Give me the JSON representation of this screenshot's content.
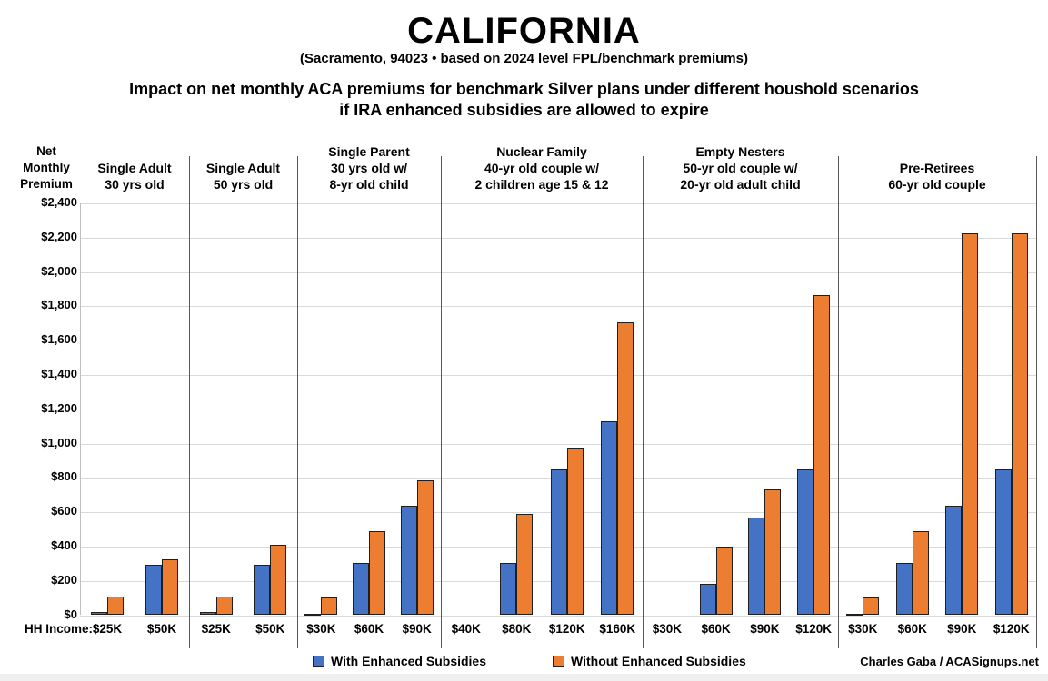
{
  "title": "CALIFORNIA",
  "subtitle": "(Sacramento, 94023 • based on 2024 level FPL/benchmark premiums)",
  "heading_line1": "Impact on net monthly ACA premiums for benchmark Silver plans under different houshold scenarios",
  "heading_line2": "if IRA enhanced subsidies are allowed to expire",
  "y_axis_title_lines": [
    "Net",
    "Monthly",
    "Premium"
  ],
  "hh_income_label": "HH Income:",
  "credit": "Charles Gaba / ACASignups.net",
  "colors": {
    "with_enhanced": "#4472C4",
    "without_enhanced": "#ED7D31",
    "bar_border": "#1f1f1f",
    "gridline": "#d9d9d9",
    "separator": "#595959"
  },
  "legend": [
    {
      "label": "With Enhanced Subsidies",
      "color": "#4472C4"
    },
    {
      "label": "Without Enhanced Subsidies",
      "color": "#ED7D31"
    }
  ],
  "chart_data": {
    "type": "bar",
    "title": "CALIFORNIA (Sacramento, 94023) — Impact on net monthly ACA premiums for benchmark Silver plans under different houshold scenarios if IRA enhanced subsidies are allowed to expire",
    "xlabel": "HH Income",
    "ylabel": "Net Monthly Premium",
    "ylim": [
      0,
      2400
    ],
    "ytick_step": 200,
    "y_ticks": [
      0,
      200,
      400,
      600,
      800,
      1000,
      1200,
      1400,
      1600,
      1800,
      2000,
      2200,
      2400
    ],
    "grid": true,
    "legend_position": "bottom",
    "series_names": [
      "With Enhanced Subsidies",
      "Without Enhanced Subsidies"
    ],
    "groups": [
      {
        "name": "Single Adult 30 yrs old",
        "header_lines": [
          "Single Adult",
          "30 yrs old"
        ],
        "categories": [
          "$25K",
          "$50K"
        ],
        "series": [
          {
            "name": "With Enhanced Subsidies",
            "values": [
              20,
              295
            ]
          },
          {
            "name": "Without Enhanced Subsidies",
            "values": [
              110,
              325
            ]
          }
        ]
      },
      {
        "name": "Single Adult 50 yrs old",
        "header_lines": [
          "Single Adult",
          "50 yrs old"
        ],
        "categories": [
          "$25K",
          "$50K"
        ],
        "series": [
          {
            "name": "With Enhanced Subsidies",
            "values": [
              20,
              295
            ]
          },
          {
            "name": "Without Enhanced Subsidies",
            "values": [
              110,
              410
            ]
          }
        ]
      },
      {
        "name": "Single Parent 30 yrs old w/ 8-yr old child",
        "header_lines": [
          "Single Parent",
          "30 yrs old w/",
          "8-yr old child"
        ],
        "categories": [
          "$30K",
          "$60K",
          "$90K"
        ],
        "series": [
          {
            "name": "With Enhanced Subsidies",
            "values": [
              8,
              305,
              635
            ]
          },
          {
            "name": "Without Enhanced Subsidies",
            "values": [
              105,
              490,
              785
            ]
          }
        ]
      },
      {
        "name": "Nuclear Family 40-yr old couple w/ 2 children age 15 & 12",
        "header_lines": [
          "Nuclear Family",
          "40-yr old couple w/",
          "2 children age 15 & 12"
        ],
        "categories": [
          "$40K",
          "$80K",
          "$120K",
          "$160K"
        ],
        "series": [
          {
            "name": "With Enhanced Subsidies",
            "values": [
              0,
              305,
              850,
              1130
            ]
          },
          {
            "name": "Without Enhanced Subsidies",
            "values": [
              0,
              590,
              975,
              1705
            ]
          }
        ]
      },
      {
        "name": "Empty Nesters 50-yr old couple w/ 20-yr old adult child",
        "header_lines": [
          "Empty Nesters",
          "50-yr old couple w/",
          "20-yr old adult child"
        ],
        "categories": [
          "$30K",
          "$60K",
          "$90K",
          "$120K"
        ],
        "series": [
          {
            "name": "With Enhanced Subsidies",
            "values": [
              0,
              185,
              570,
              850
            ]
          },
          {
            "name": "Without Enhanced Subsidies",
            "values": [
              0,
              400,
              735,
              1865
            ]
          }
        ]
      },
      {
        "name": "Pre-Retirees 60-yr old couple",
        "header_lines": [
          "Pre-Retirees",
          "60-yr old couple"
        ],
        "categories": [
          "$30K",
          "$60K",
          "$90K",
          "$120K"
        ],
        "series": [
          {
            "name": "With Enhanced Subsidies",
            "values": [
              8,
              305,
              635,
              850
            ]
          },
          {
            "name": "Without Enhanced Subsidies",
            "values": [
              105,
              490,
              2225,
              2225
            ]
          }
        ]
      }
    ]
  }
}
